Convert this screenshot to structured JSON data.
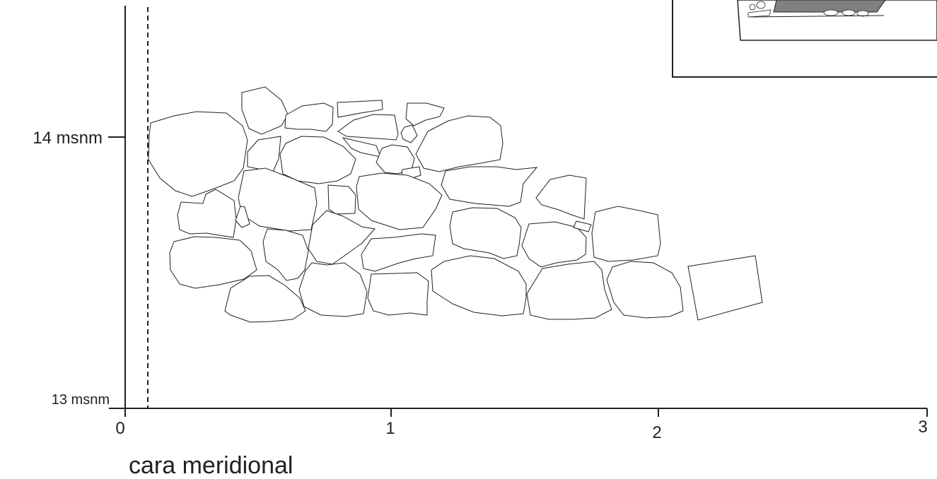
{
  "caption": "cara meridional",
  "y_axis": {
    "labels": [
      "14 msnm",
      "13 msnm"
    ]
  },
  "x_axis": {
    "ticks": [
      "0",
      "1",
      "2",
      "3"
    ]
  },
  "inset": {
    "description_icon": "location-map-icon"
  },
  "colors": {
    "ink": "#231f20",
    "inset_fill": "#808080"
  }
}
